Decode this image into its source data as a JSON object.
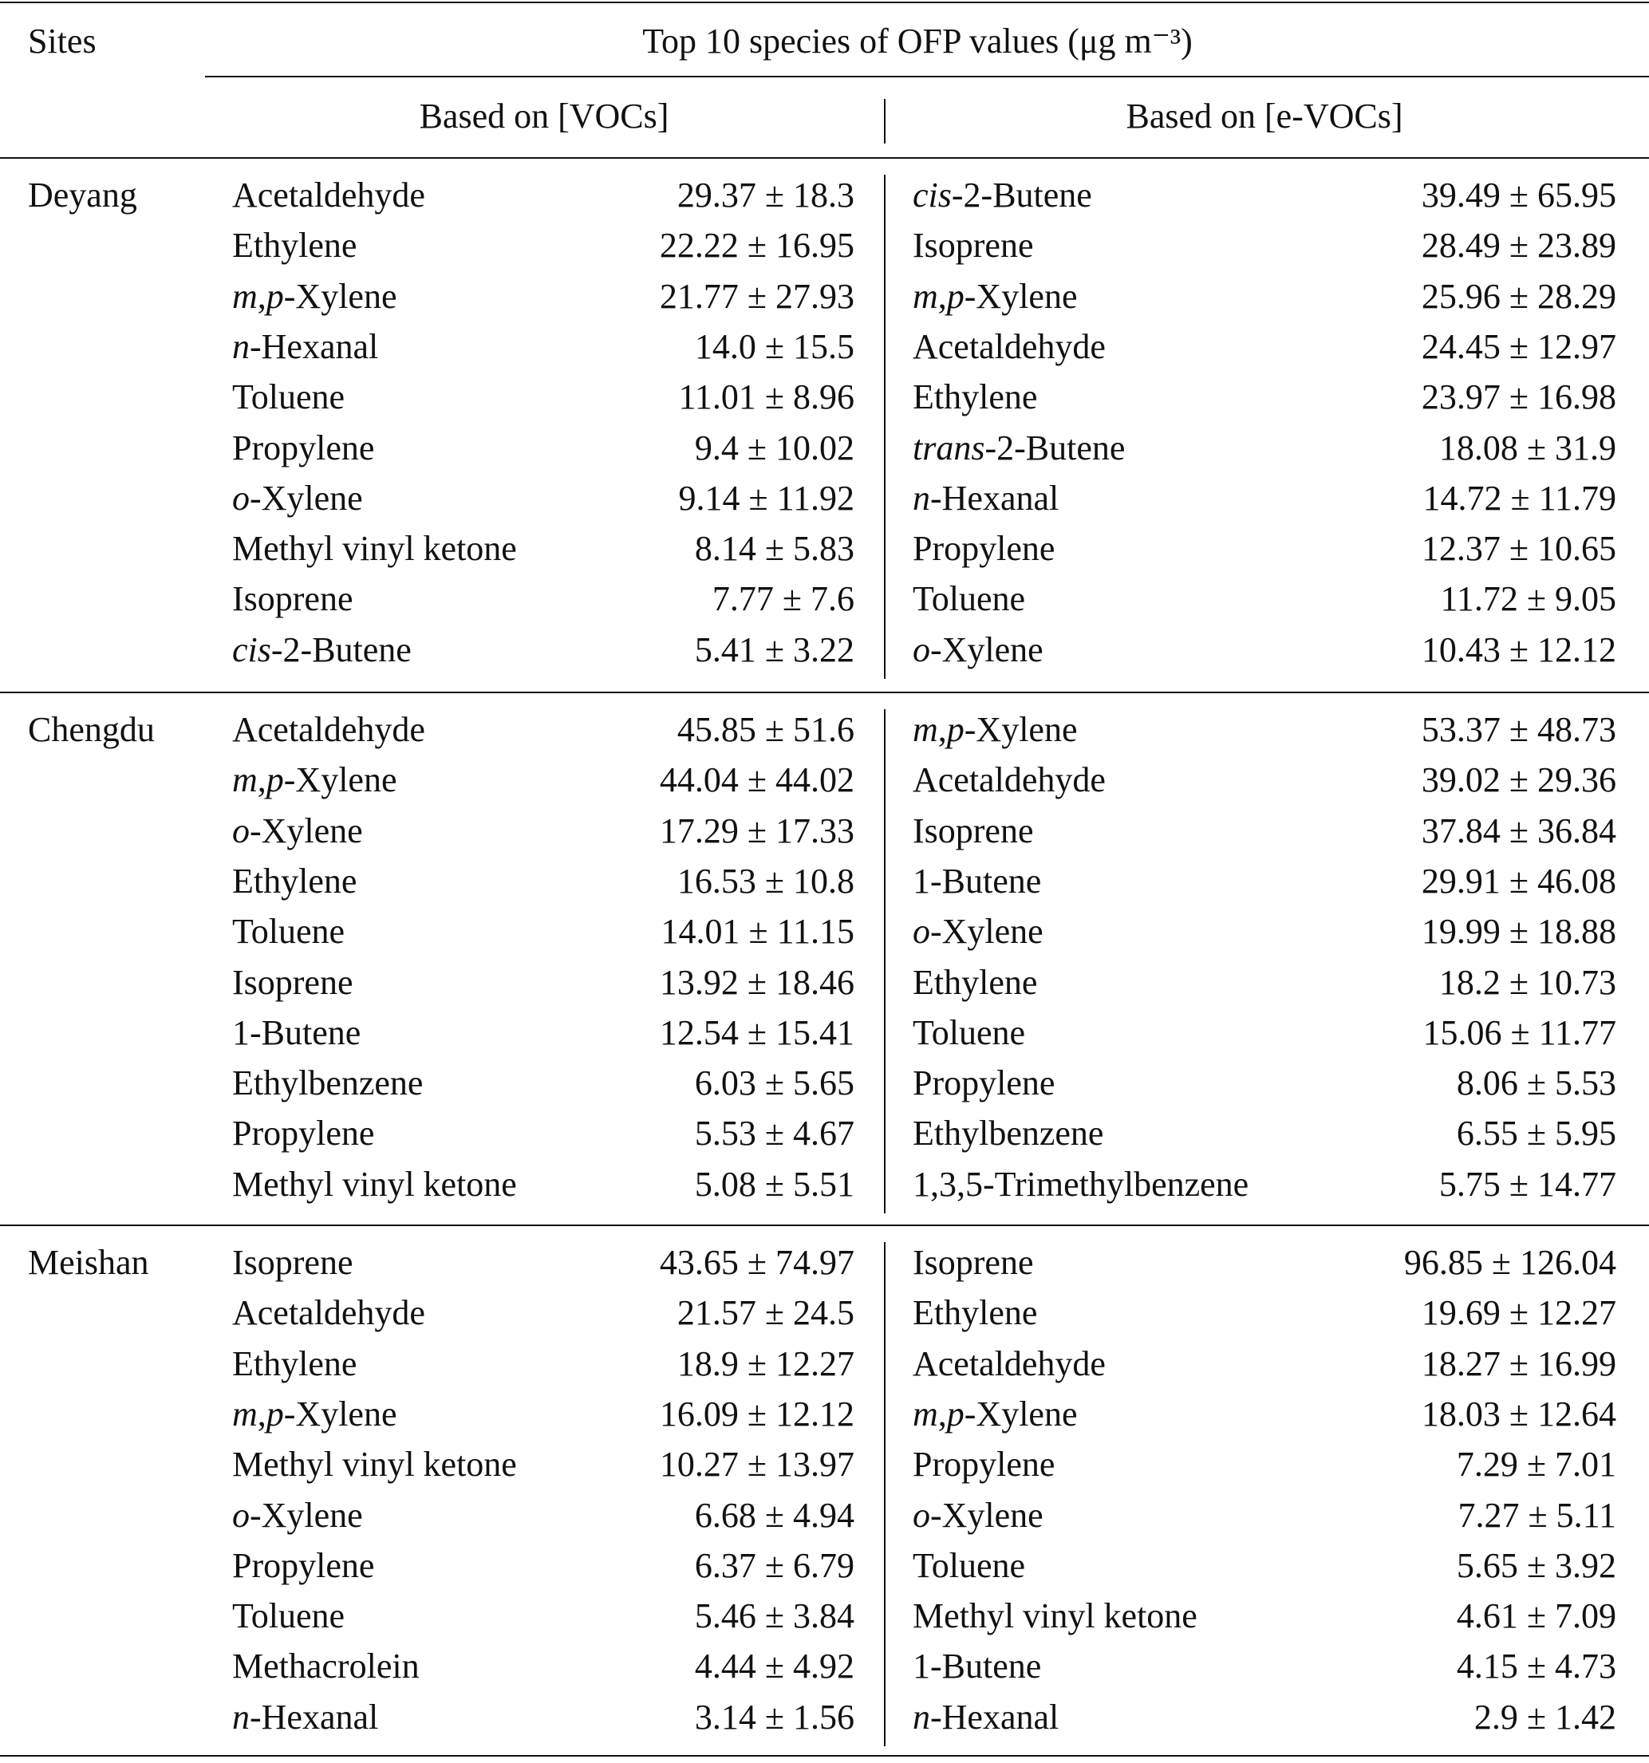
{
  "header": {
    "sites": "Sites",
    "title": "Top 10 species of OFP values (μg m⁻³)",
    "voc": "Based on [VOCs]",
    "evoc": "Based on [e-VOCs]"
  },
  "sections": [
    {
      "site": "Deyang",
      "rows": [
        [
          "Acetaldehyde",
          "29.37 ± 18.3",
          "cis-2-Butene",
          "39.49 ± 65.95"
        ],
        [
          "Ethylene",
          "22.22 ± 16.95",
          "Isoprene",
          "28.49 ± 23.89"
        ],
        [
          "m,p-Xylene",
          "21.77 ± 27.93",
          "m,p-Xylene",
          "25.96 ± 28.29"
        ],
        [
          "n-Hexanal",
          "14.0 ± 15.5",
          "Acetaldehyde",
          "24.45 ± 12.97"
        ],
        [
          "Toluene",
          "11.01 ± 8.96",
          "Ethylene",
          "23.97 ± 16.98"
        ],
        [
          "Propylene",
          "9.4 ± 10.02",
          "trans-2-Butene",
          "18.08 ± 31.9"
        ],
        [
          "o-Xylene",
          "9.14 ± 11.92",
          "n-Hexanal",
          "14.72 ± 11.79"
        ],
        [
          "Methyl vinyl ketone",
          "8.14 ± 5.83",
          "Propylene",
          "12.37 ± 10.65"
        ],
        [
          "Isoprene",
          "7.77 ± 7.6",
          "Toluene",
          "11.72 ± 9.05"
        ],
        [
          "cis-2-Butene",
          "5.41 ± 3.22",
          "o-Xylene",
          "10.43 ± 12.12"
        ]
      ]
    },
    {
      "site": "Chengdu",
      "rows": [
        [
          "Acetaldehyde",
          "45.85 ± 51.6",
          "m,p-Xylene",
          "53.37 ± 48.73"
        ],
        [
          "m,p-Xylene",
          "44.04 ± 44.02",
          "Acetaldehyde",
          "39.02 ± 29.36"
        ],
        [
          "o-Xylene",
          "17.29 ± 17.33",
          "Isoprene",
          "37.84 ± 36.84"
        ],
        [
          "Ethylene",
          "16.53 ± 10.8",
          "1-Butene",
          "29.91 ± 46.08"
        ],
        [
          "Toluene",
          "14.01 ± 11.15",
          "o-Xylene",
          "19.99 ± 18.88"
        ],
        [
          "Isoprene",
          "13.92 ± 18.46",
          "Ethylene",
          "18.2 ± 10.73"
        ],
        [
          "1-Butene",
          "12.54 ± 15.41",
          "Toluene",
          "15.06 ± 11.77"
        ],
        [
          "Ethylbenzene",
          "6.03 ± 5.65",
          "Propylene",
          "8.06 ± 5.53"
        ],
        [
          "Propylene",
          "5.53 ± 4.67",
          "Ethylbenzene",
          "6.55 ± 5.95"
        ],
        [
          "Methyl vinyl ketone",
          "5.08 ± 5.51",
          "1,3,5-Trimethylbenzene",
          "5.75 ± 14.77"
        ]
      ]
    },
    {
      "site": "Meishan",
      "rows": [
        [
          "Isoprene",
          "43.65 ± 74.97",
          "Isoprene",
          "96.85 ± 126.04"
        ],
        [
          "Acetaldehyde",
          "21.57 ± 24.5",
          "Ethylene",
          "19.69 ± 12.27"
        ],
        [
          "Ethylene",
          "18.9 ± 12.27",
          "Acetaldehyde",
          "18.27 ± 16.99"
        ],
        [
          "m,p-Xylene",
          "16.09 ± 12.12",
          "m,p-Xylene",
          "18.03 ± 12.64"
        ],
        [
          "Methyl vinyl ketone",
          "10.27 ± 13.97",
          "Propylene",
          "7.29 ± 7.01"
        ],
        [
          "o-Xylene",
          "6.68 ± 4.94",
          "o-Xylene",
          "7.27 ± 5.11"
        ],
        [
          "Propylene",
          "6.37 ± 6.79",
          "Toluene",
          "5.65 ± 3.92"
        ],
        [
          "Toluene",
          "5.46 ± 3.84",
          "Methyl vinyl ketone",
          "4.61 ± 7.09"
        ],
        [
          "Methacrolein",
          "4.44 ± 4.92",
          "1-Butene",
          "4.15 ± 4.73"
        ],
        [
          "n-Hexanal",
          "3.14 ± 1.56",
          "n-Hexanal",
          "2.9 ± 1.42"
        ]
      ]
    }
  ]
}
